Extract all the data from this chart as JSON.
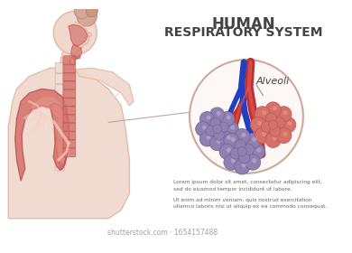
{
  "title_line1": "HUMAN",
  "title_line2": "RESPIRATORY SYSTEM",
  "alveoli_label": "Alveoli",
  "lorem_text1": "Lorem ipsum dolor sit amet, consectetur adipiscing elit,\nsed do eiusmod tempor incididunt ut labore.",
  "lorem_text2": "Ut enim ad minim veniam, quis nostrud exercitation\nullamco laboris nisi ut aliquip ex ea commodo consequat.",
  "bg_color": "#ffffff",
  "title_color": "#444444",
  "body_skin": "#f0d8cc",
  "body_outline": "#e0b8a0",
  "lung_fill": "#d4726a",
  "lung_light": "#e8998f",
  "lung_edge": "#c05050",
  "trachea_fill": "#d4726a",
  "spine_color": "#eeddd0",
  "spine_edge": "#d4b0a0",
  "nasal_fill": "#d4726a",
  "alveoli_pink_outer": "#d4726a",
  "alveoli_pink_inner": "#f0a090",
  "alveoli_purple_outer": "#9080b0",
  "alveoli_purple_inner": "#b8a8d0",
  "blood_red": "#c03030",
  "blood_blue": "#2040c0",
  "blood_red_light": "#e06060",
  "circle_edge": "#d0a898",
  "circle_bg": "#fdf8f5",
  "connector_color": "#c0a898",
  "text_color": "#666666",
  "watermark_color": "#999999"
}
